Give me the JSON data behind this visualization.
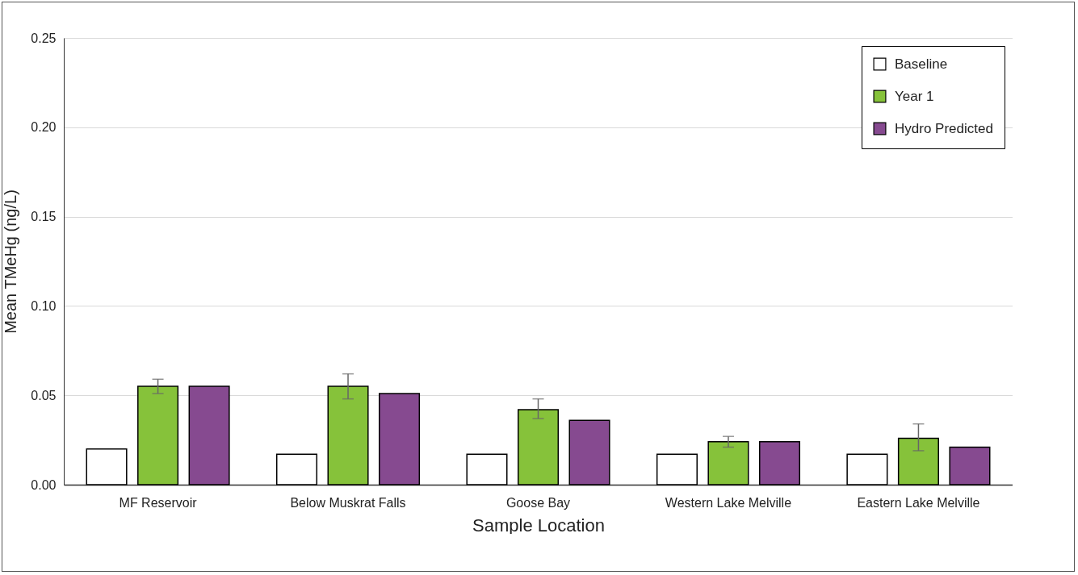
{
  "chart_data": {
    "type": "bar",
    "xlabel": "Sample Location",
    "ylabel": "Mean TMeHg (ng/L)",
    "categories": [
      "MF Reservoir",
      "Below Muskrat Falls",
      "Goose Bay",
      "Western Lake Melville",
      "Eastern Lake Melville"
    ],
    "series": [
      {
        "name": "Baseline",
        "color": "#ffffff",
        "values": [
          0.02,
          0.017,
          0.017,
          0.017,
          0.017
        ]
      },
      {
        "name": "Year 1",
        "color": "#86c23a",
        "values": [
          0.055,
          0.055,
          0.042,
          0.024,
          0.026
        ],
        "errors": [
          [
            0.051,
            0.059
          ],
          [
            0.048,
            0.062
          ],
          [
            0.037,
            0.048
          ],
          [
            0.021,
            0.027
          ],
          [
            0.019,
            0.034
          ]
        ]
      },
      {
        "name": "Hydro Predicted",
        "color": "#864a90",
        "values": [
          0.055,
          0.051,
          0.036,
          0.024,
          0.021
        ]
      }
    ],
    "ylim": [
      0,
      0.25
    ],
    "yticks": [
      {
        "value": 0,
        "label": "0.00"
      },
      {
        "value": 0.05,
        "label": "0.05"
      },
      {
        "value": 0.1,
        "label": "0.10"
      },
      {
        "value": 0.15,
        "label": "0.15"
      },
      {
        "value": 0.2,
        "label": "0.20"
      },
      {
        "value": 0.25,
        "label": "0.25"
      }
    ],
    "grid": "y",
    "legend": "top right"
  }
}
